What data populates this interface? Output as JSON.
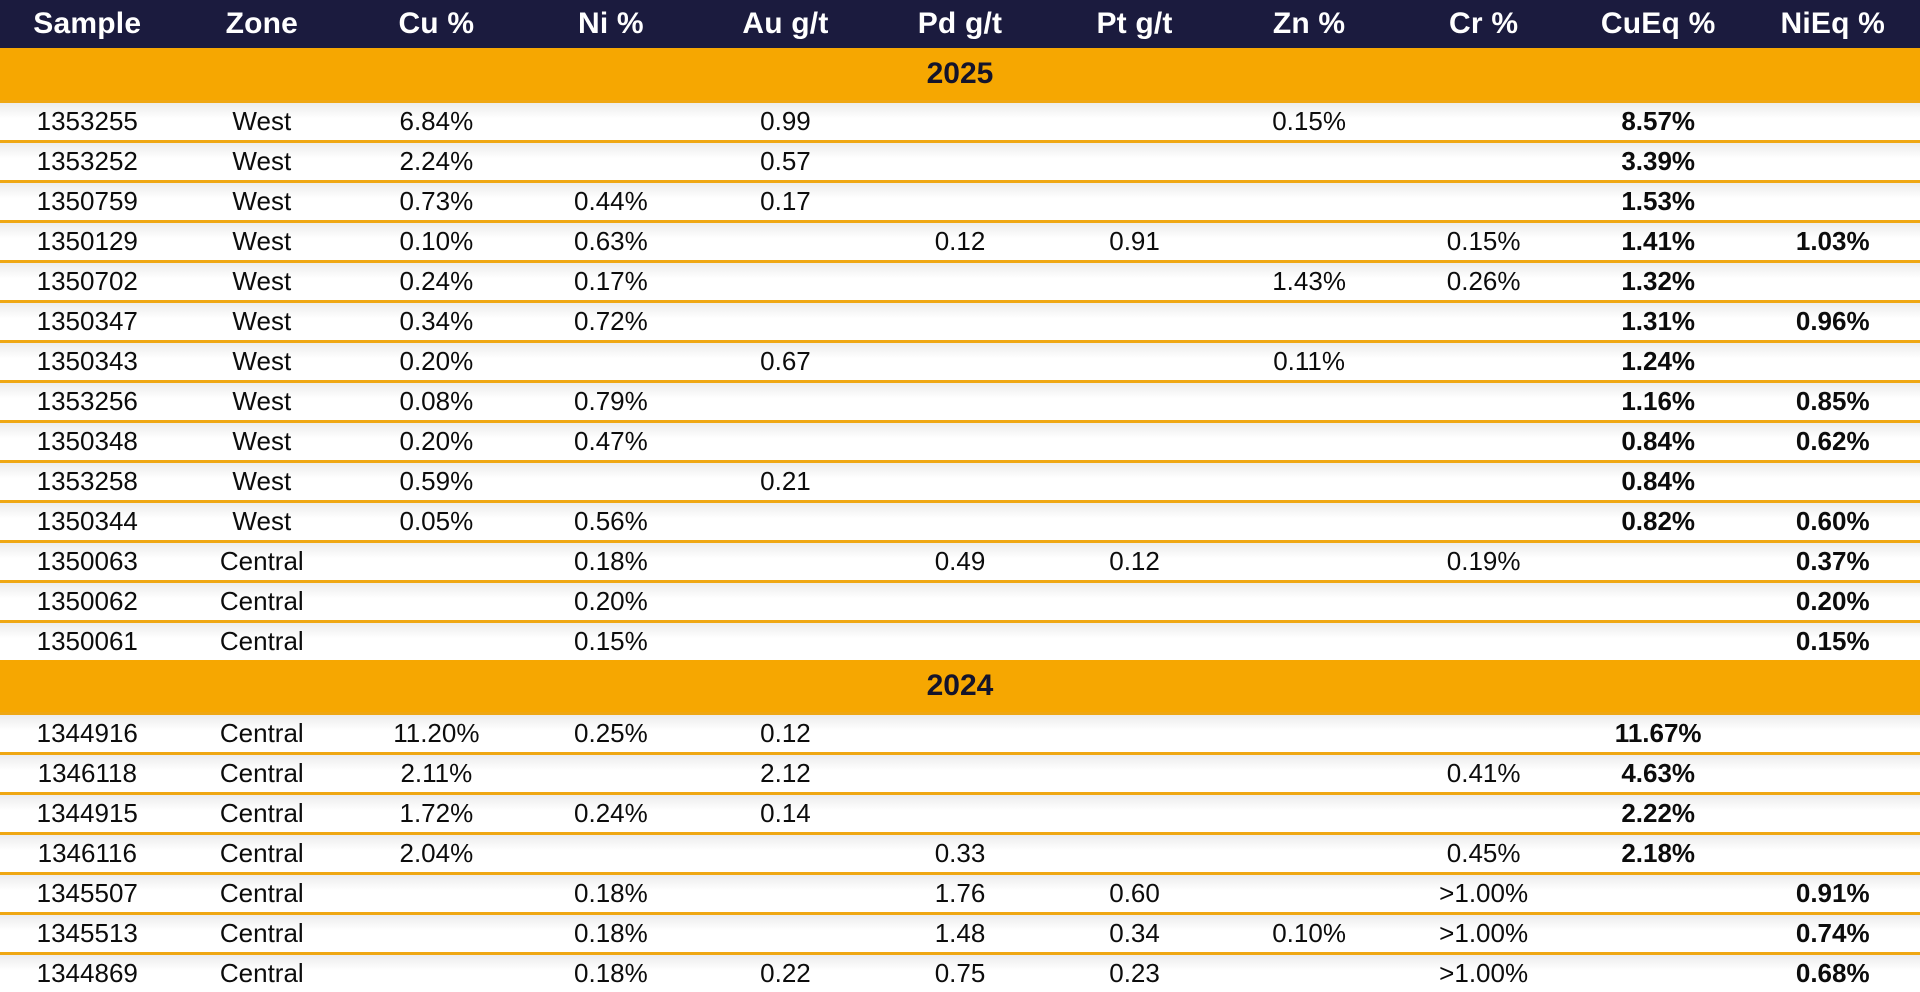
{
  "colors": {
    "header_bg": "#1b1b3e",
    "header_text": "#ffffff",
    "banner_bg": "#f6a701",
    "banner_text": "#14142b",
    "row_separator": "#efa713",
    "data_text": "#0c0c0c"
  },
  "table": {
    "columns": [
      "Sample",
      "Zone",
      "Cu %",
      "Ni %",
      "Au g/t",
      "Pd g/t",
      "Pt g/t",
      "Zn %",
      "Cr %",
      "CuEq %",
      "NiEq %"
    ],
    "bold_column_indexes": [
      9,
      10
    ],
    "sections": [
      {
        "year": "2025",
        "rows": [
          [
            "1353255",
            "West",
            "6.84%",
            "",
            "0.99",
            "",
            "",
            "0.15%",
            "",
            "8.57%",
            ""
          ],
          [
            "1353252",
            "West",
            "2.24%",
            "",
            "0.57",
            "",
            "",
            "",
            "",
            "3.39%",
            ""
          ],
          [
            "1350759",
            "West",
            "0.73%",
            "0.44%",
            "0.17",
            "",
            "",
            "",
            "",
            "1.53%",
            ""
          ],
          [
            "1350129",
            "West",
            "0.10%",
            "0.63%",
            "",
            "0.12",
            "0.91",
            "",
            "0.15%",
            "1.41%",
            "1.03%"
          ],
          [
            "1350702",
            "West",
            "0.24%",
            "0.17%",
            "",
            "",
            "",
            "1.43%",
            "0.26%",
            "1.32%",
            ""
          ],
          [
            "1350347",
            "West",
            "0.34%",
            "0.72%",
            "",
            "",
            "",
            "",
            "",
            "1.31%",
            "0.96%"
          ],
          [
            "1350343",
            "West",
            "0.20%",
            "",
            "0.67",
            "",
            "",
            "0.11%",
            "",
            "1.24%",
            ""
          ],
          [
            "1353256",
            "West",
            "0.08%",
            "0.79%",
            "",
            "",
            "",
            "",
            "",
            "1.16%",
            "0.85%"
          ],
          [
            "1350348",
            "West",
            "0.20%",
            "0.47%",
            "",
            "",
            "",
            "",
            "",
            "0.84%",
            "0.62%"
          ],
          [
            "1353258",
            "West",
            "0.59%",
            "",
            "0.21",
            "",
            "",
            "",
            "",
            "0.84%",
            ""
          ],
          [
            "1350344",
            "West",
            "0.05%",
            "0.56%",
            "",
            "",
            "",
            "",
            "",
            "0.82%",
            "0.60%"
          ],
          [
            "1350063",
            "Central",
            "",
            "0.18%",
            "",
            "0.49",
            "0.12",
            "",
            "0.19%",
            "",
            "0.37%"
          ],
          [
            "1350062",
            "Central",
            "",
            "0.20%",
            "",
            "",
            "",
            "",
            "",
            "",
            "0.20%"
          ],
          [
            "1350061",
            "Central",
            "",
            "0.15%",
            "",
            "",
            "",
            "",
            "",
            "",
            "0.15%"
          ]
        ]
      },
      {
        "year": "2024",
        "rows": [
          [
            "1344916",
            "Central",
            "11.20%",
            "0.25%",
            "0.12",
            "",
            "",
            "",
            "",
            "11.67%",
            ""
          ],
          [
            "1346118",
            "Central",
            "2.11%",
            "",
            "2.12",
            "",
            "",
            "",
            "0.41%",
            "4.63%",
            ""
          ],
          [
            "1344915",
            "Central",
            "1.72%",
            "0.24%",
            "0.14",
            "",
            "",
            "",
            "",
            "2.22%",
            ""
          ],
          [
            "1346116",
            "Central",
            "2.04%",
            "",
            "",
            "0.33",
            "",
            "",
            "0.45%",
            "2.18%",
            ""
          ],
          [
            "1345507",
            "Central",
            "",
            "0.18%",
            "",
            "1.76",
            "0.60",
            "",
            ">1.00%",
            "",
            "0.91%"
          ],
          [
            "1345513",
            "Central",
            "",
            "0.18%",
            "",
            "1.48",
            "0.34",
            "0.10%",
            ">1.00%",
            "",
            "0.74%"
          ],
          [
            "1344869",
            "Central",
            "",
            "0.18%",
            "0.22",
            "0.75",
            "0.23",
            "",
            ">1.00%",
            "",
            "0.68%"
          ]
        ]
      }
    ]
  }
}
